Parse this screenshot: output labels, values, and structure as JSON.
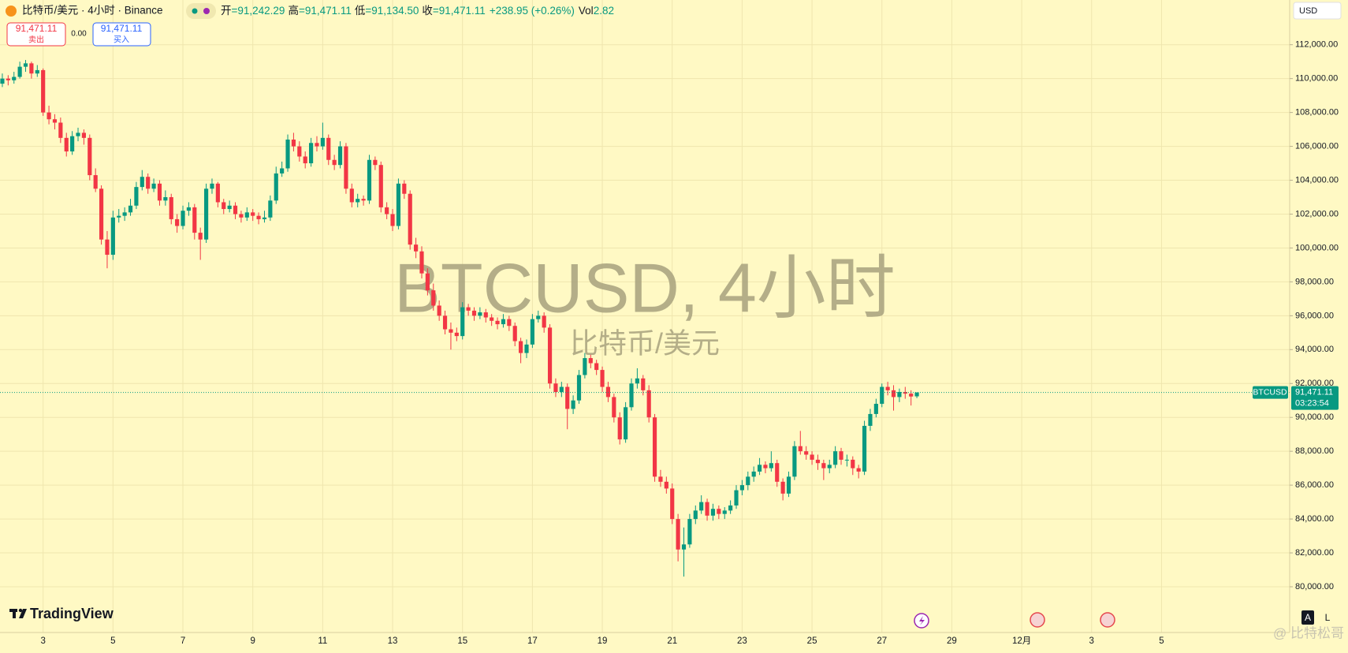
{
  "header": {
    "symbol": "比特币/美元 · 4小时 · Binance",
    "open_label": "开",
    "open": "=91,242.29",
    "high_label": "高",
    "high": "=91,471.11",
    "low_label": "低",
    "low": "=91,134.50",
    "close_label": "收",
    "close": "=91,471.11",
    "change": "+238.95 (+0.26%)",
    "volume_label": "Vol",
    "volume": "2.82"
  },
  "trade": {
    "sell_price": "91,471.11",
    "sell_label": "卖出",
    "spread": "0.00",
    "buy_price": "91,471.11",
    "buy_label": "买入"
  },
  "price_scale": {
    "currency": "USD",
    "symbol": "BTCUSD",
    "last_price": "91,471.11",
    "countdown": "03:23:54"
  },
  "branding": {
    "logo": "TradingView",
    "watermark": "@ 比特松哥"
  },
  "buttons": {
    "auto": "A",
    "log": "L"
  },
  "chart_data": {
    "type": "candlestick",
    "title": "BTCUSD, 4小时",
    "subtitle": "比特币/美元",
    "up_color": "#089981",
    "down_color": "#f23645",
    "grid": true,
    "xlim": [
      -0.4,
      221
    ],
    "xticks": [
      {
        "value": 7,
        "label": "3"
      },
      {
        "value": 19,
        "label": "5"
      },
      {
        "value": 31,
        "label": "7"
      },
      {
        "value": 43,
        "label": "9"
      },
      {
        "value": 55,
        "label": "11"
      },
      {
        "value": 67,
        "label": "13"
      },
      {
        "value": 79,
        "label": "15"
      },
      {
        "value": 91,
        "label": "17"
      },
      {
        "value": 103,
        "label": "19"
      },
      {
        "value": 115,
        "label": "21"
      },
      {
        "value": 127,
        "label": "23"
      },
      {
        "value": 139,
        "label": "25"
      },
      {
        "value": 151,
        "label": "27"
      },
      {
        "value": 163,
        "label": "29"
      },
      {
        "value": 175,
        "label": "12月"
      },
      {
        "value": 187,
        "label": "3"
      },
      {
        "value": 199,
        "label": "5"
      }
    ],
    "ylim": [
      77300,
      114640
    ],
    "yticks": [
      {
        "value": 80000,
        "label": "80,000.00"
      },
      {
        "value": 82000,
        "label": "82,000.00"
      },
      {
        "value": 84000,
        "label": "84,000.00"
      },
      {
        "value": 86000,
        "label": "86,000.00"
      },
      {
        "value": 88000,
        "label": "88,000.00"
      },
      {
        "value": 90000,
        "label": "90,000.00"
      },
      {
        "value": 92000,
        "label": "92,000.00"
      },
      {
        "value": 94000,
        "label": "94,000.00"
      },
      {
        "value": 96000,
        "label": "96,000.00"
      },
      {
        "value": 98000,
        "label": "98,000.00"
      },
      {
        "value": 100000,
        "label": "100,000.00"
      },
      {
        "value": 102000,
        "label": "102,000.00"
      },
      {
        "value": 104000,
        "label": "104,000.00"
      },
      {
        "value": 106000,
        "label": "106,000.00"
      },
      {
        "value": 108000,
        "label": "108,000.00"
      },
      {
        "value": 110000,
        "label": "110,000.00"
      },
      {
        "value": 112000,
        "label": "112,000.00"
      }
    ],
    "candles": [
      [
        109700,
        110300,
        109500,
        110000
      ],
      [
        110000,
        110200,
        109600,
        109900
      ],
      [
        109900,
        110400,
        109700,
        110100
      ],
      [
        110100,
        111000,
        110000,
        110700
      ],
      [
        110700,
        111100,
        110400,
        110900
      ],
      [
        110900,
        111000,
        110000,
        110300
      ],
      [
        110300,
        110800,
        110100,
        110500
      ],
      [
        110500,
        110600,
        107800,
        108000
      ],
      [
        108000,
        108400,
        107300,
        107600
      ],
      [
        107600,
        107900,
        107000,
        107400
      ],
      [
        107400,
        107700,
        106200,
        106500
      ],
      [
        106500,
        106800,
        105400,
        105700
      ],
      [
        105700,
        106900,
        105500,
        106600
      ],
      [
        106600,
        107100,
        106300,
        106800
      ],
      [
        106800,
        107000,
        106100,
        106500
      ],
      [
        106500,
        106700,
        104000,
        104300
      ],
      [
        104300,
        104700,
        103300,
        103500
      ],
      [
        103500,
        103700,
        100200,
        100500
      ],
      [
        100500,
        101000,
        98800,
        99600
      ],
      [
        99600,
        102200,
        99300,
        101800
      ],
      [
        101800,
        102300,
        101500,
        101900
      ],
      [
        101900,
        102400,
        101600,
        102100
      ],
      [
        102100,
        102900,
        101900,
        102500
      ],
      [
        102500,
        103900,
        102300,
        103600
      ],
      [
        103600,
        104600,
        103400,
        104200
      ],
      [
        104200,
        104400,
        103200,
        103500
      ],
      [
        103500,
        104100,
        103300,
        103800
      ],
      [
        103800,
        104000,
        102500,
        102800
      ],
      [
        102800,
        103400,
        102500,
        103000
      ],
      [
        103000,
        103200,
        101400,
        101700
      ],
      [
        101700,
        102000,
        100900,
        101300
      ],
      [
        101300,
        102500,
        101100,
        102200
      ],
      [
        102200,
        102700,
        101900,
        102400
      ],
      [
        102400,
        102600,
        100500,
        100900
      ],
      [
        100900,
        101200,
        99300,
        100500
      ],
      [
        100500,
        103800,
        100300,
        103500
      ],
      [
        103500,
        104100,
        103200,
        103800
      ],
      [
        103800,
        103900,
        102400,
        102700
      ],
      [
        102700,
        102900,
        102000,
        102300
      ],
      [
        102300,
        102800,
        102100,
        102500
      ],
      [
        102500,
        102700,
        101700,
        102000
      ],
      [
        102000,
        102200,
        101500,
        101800
      ],
      [
        101800,
        102400,
        101600,
        102100
      ],
      [
        102100,
        102300,
        101600,
        101900
      ],
      [
        101900,
        102100,
        101400,
        101700
      ],
      [
        101700,
        102200,
        101500,
        101800
      ],
      [
        101800,
        103100,
        101600,
        102800
      ],
      [
        102800,
        104800,
        102600,
        104400
      ],
      [
        104400,
        105100,
        104200,
        104700
      ],
      [
        104700,
        106700,
        104500,
        106400
      ],
      [
        106400,
        106800,
        105700,
        106000
      ],
      [
        106000,
        106300,
        105100,
        105400
      ],
      [
        105400,
        105700,
        104700,
        105000
      ],
      [
        105000,
        106500,
        104800,
        106200
      ],
      [
        106200,
        106600,
        105700,
        106000
      ],
      [
        106000,
        107400,
        105800,
        106500
      ],
      [
        106500,
        106700,
        104900,
        105200
      ],
      [
        105200,
        105500,
        104600,
        104900
      ],
      [
        104900,
        106300,
        104700,
        106000
      ],
      [
        106000,
        106200,
        103200,
        103500
      ],
      [
        103500,
        103800,
        102400,
        102700
      ],
      [
        102700,
        103200,
        102400,
        102900
      ],
      [
        102900,
        103100,
        102500,
        102800
      ],
      [
        102800,
        105500,
        102600,
        105200
      ],
      [
        105200,
        105400,
        104600,
        104900
      ],
      [
        104900,
        105100,
        102100,
        102400
      ],
      [
        102400,
        102700,
        101700,
        102000
      ],
      [
        102000,
        102300,
        101000,
        101300
      ],
      [
        101300,
        104100,
        101100,
        103800
      ],
      [
        103800,
        104000,
        102900,
        103200
      ],
      [
        103200,
        103400,
        99900,
        100200
      ],
      [
        100200,
        100600,
        99400,
        99800
      ],
      [
        99800,
        100100,
        98200,
        98500
      ],
      [
        98500,
        98800,
        97200,
        97500
      ],
      [
        97500,
        97900,
        96300,
        96600
      ],
      [
        96600,
        96900,
        95700,
        96000
      ],
      [
        96000,
        96300,
        94900,
        95200
      ],
      [
        95200,
        95600,
        94000,
        95000
      ],
      [
        95000,
        95300,
        94500,
        94800
      ],
      [
        94800,
        96800,
        94600,
        96500
      ],
      [
        96500,
        96700,
        96000,
        96300
      ],
      [
        96300,
        96500,
        95700,
        96000
      ],
      [
        96000,
        96500,
        95800,
        96200
      ],
      [
        96200,
        96400,
        95600,
        95900
      ],
      [
        95900,
        96100,
        95400,
        95700
      ],
      [
        95700,
        95900,
        95200,
        95500
      ],
      [
        95500,
        96100,
        95300,
        95800
      ],
      [
        95800,
        96000,
        95100,
        95400
      ],
      [
        95400,
        95600,
        94200,
        94500
      ],
      [
        94500,
        94700,
        93200,
        93800
      ],
      [
        93800,
        94600,
        93500,
        94300
      ],
      [
        94300,
        96100,
        94100,
        95800
      ],
      [
        95800,
        96300,
        95600,
        96000
      ],
      [
        96000,
        96200,
        95000,
        95300
      ],
      [
        95300,
        95500,
        91700,
        92000
      ],
      [
        92000,
        92300,
        91200,
        91500
      ],
      [
        91500,
        92100,
        91200,
        91800
      ],
      [
        91800,
        92000,
        89300,
        90500
      ],
      [
        90500,
        91300,
        90200,
        91000
      ],
      [
        91000,
        92800,
        90800,
        92500
      ],
      [
        92500,
        93800,
        92300,
        93500
      ],
      [
        93500,
        93700,
        92900,
        93200
      ],
      [
        93200,
        93400,
        92500,
        92800
      ],
      [
        92800,
        93000,
        91500,
        91800
      ],
      [
        91800,
        92100,
        90900,
        91200
      ],
      [
        91200,
        91400,
        89700,
        90000
      ],
      [
        90000,
        90300,
        88400,
        88700
      ],
      [
        88700,
        90900,
        88500,
        90600
      ],
      [
        90600,
        92300,
        90400,
        92000
      ],
      [
        92000,
        92900,
        91700,
        92300
      ],
      [
        92300,
        92500,
        91300,
        91600
      ],
      [
        91600,
        91900,
        89700,
        90000
      ],
      [
        90000,
        90200,
        86200,
        86500
      ],
      [
        86500,
        86900,
        85900,
        86200
      ],
      [
        86200,
        86500,
        85500,
        85800
      ],
      [
        85800,
        86100,
        83700,
        84000
      ],
      [
        84000,
        84300,
        81500,
        82200
      ],
      [
        82200,
        83500,
        80600,
        82500
      ],
      [
        82500,
        84300,
        82300,
        84000
      ],
      [
        84000,
        84800,
        83700,
        84500
      ],
      [
        84500,
        85400,
        84300,
        85000
      ],
      [
        85000,
        85200,
        83900,
        84200
      ],
      [
        84200,
        84900,
        83900,
        84600
      ],
      [
        84600,
        84800,
        84000,
        84300
      ],
      [
        84300,
        84700,
        84000,
        84500
      ],
      [
        84500,
        85100,
        84300,
        84800
      ],
      [
        84800,
        86000,
        84600,
        85700
      ],
      [
        85700,
        86300,
        85400,
        86000
      ],
      [
        86000,
        86800,
        85700,
        86500
      ],
      [
        86500,
        87100,
        86200,
        86800
      ],
      [
        86800,
        87600,
        86600,
        87200
      ],
      [
        87200,
        87400,
        86700,
        87000
      ],
      [
        87000,
        88000,
        86800,
        87300
      ],
      [
        87300,
        87500,
        85900,
        86200
      ],
      [
        86200,
        86400,
        85100,
        85500
      ],
      [
        85500,
        86800,
        85300,
        86500
      ],
      [
        86500,
        88600,
        86300,
        88300
      ],
      [
        88300,
        89200,
        87800,
        88000
      ],
      [
        88000,
        88300,
        87500,
        87800
      ],
      [
        87800,
        88000,
        87200,
        87500
      ],
      [
        87500,
        87800,
        86900,
        87300
      ],
      [
        87300,
        87500,
        86300,
        87000
      ],
      [
        87000,
        87500,
        86700,
        87200
      ],
      [
        87200,
        88300,
        87000,
        88000
      ],
      [
        88000,
        88200,
        87200,
        87500
      ],
      [
        87500,
        87800,
        87100,
        87500
      ],
      [
        87500,
        87700,
        86600,
        87000
      ],
      [
        87000,
        87200,
        86400,
        86800
      ],
      [
        86800,
        89800,
        86600,
        89500
      ],
      [
        89500,
        90500,
        89200,
        90200
      ],
      [
        90200,
        91100,
        90000,
        90800
      ],
      [
        90800,
        92000,
        90600,
        91800
      ],
      [
        91800,
        92100,
        91300,
        91600
      ],
      [
        91600,
        91900,
        90400,
        91200
      ],
      [
        91200,
        91700,
        90900,
        91500
      ],
      [
        91500,
        91800,
        91100,
        91400
      ],
      [
        91400,
        91600,
        90700,
        91232.16
      ],
      [
        91242.29,
        91471.11,
        91134.5,
        91471.11
      ]
    ]
  }
}
